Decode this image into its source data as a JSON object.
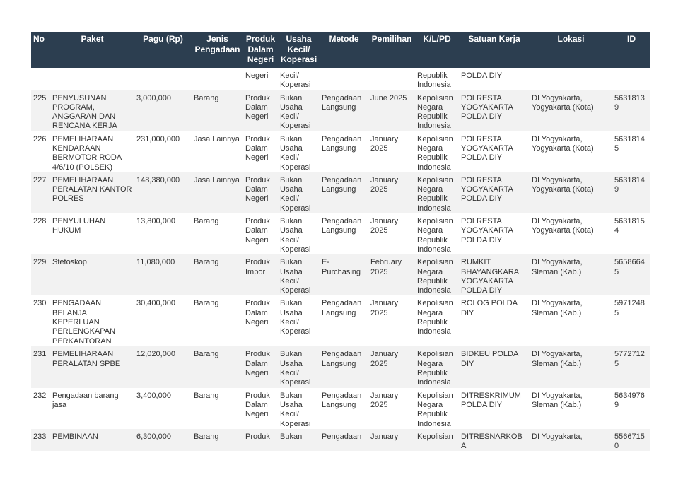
{
  "table": {
    "headers": [
      "No",
      "Paket",
      "Pagu (Rp)",
      "Jenis Pengadaan",
      "Produk Dalam Negeri",
      "Usaha Kecil/ Koperasi",
      "Metode",
      "Pemilihan",
      "K/L/PD",
      "Satuan Kerja",
      "Lokasi",
      "ID"
    ],
    "rows": [
      [
        "",
        "",
        "",
        "",
        "Negeri",
        "Kecil/ Koperasi",
        "",
        "",
        "Republik Indonesia",
        "POLDA DIY",
        "",
        ""
      ],
      [
        "225",
        "PENYUSUNAN PROGRAM, ANGGARAN DAN RENCANA KERJA",
        "3,000,000",
        "Barang",
        "Produk Dalam Negeri",
        "Bukan Usaha Kecil/ Koperasi",
        "Pengadaan Langsung",
        "June 2025",
        "Kepolisian Negara Republik Indonesia",
        "POLRESTA YOGYAKARTA POLDA DIY",
        "DI Yogyakarta, Yogyakarta (Kota)",
        "56318139"
      ],
      [
        "226",
        "PEMELIHARAAN KENDARAAN BERMOTOR RODA 4/6/10 (POLSEK)",
        "231,000,000",
        "Jasa Lainnya",
        "Produk Dalam Negeri",
        "Bukan Usaha Kecil/ Koperasi",
        "Pengadaan Langsung",
        "January 2025",
        "Kepolisian Negara Republik Indonesia",
        "POLRESTA YOGYAKARTA POLDA DIY",
        "DI Yogyakarta, Yogyakarta (Kota)",
        "56318145"
      ],
      [
        "227",
        "PEMELIHARAAN PERALATAN KANTOR POLRES",
        "148,380,000",
        "Jasa Lainnya",
        "Produk Dalam Negeri",
        "Bukan Usaha Kecil/ Koperasi",
        "Pengadaan Langsung",
        "January 2025",
        "Kepolisian Negara Republik Indonesia",
        "POLRESTA YOGYAKARTA POLDA DIY",
        "DI Yogyakarta, Yogyakarta (Kota)",
        "56318149"
      ],
      [
        "228",
        "PENYULUHAN HUKUM",
        "13,800,000",
        "Barang",
        "Produk Dalam Negeri",
        "Bukan Usaha Kecil/ Koperasi",
        "Pengadaan Langsung",
        "January 2025",
        "Kepolisian Negara Republik Indonesia",
        "POLRESTA YOGYAKARTA POLDA DIY",
        "DI Yogyakarta, Yogyakarta (Kota)",
        "56318154"
      ],
      [
        "229",
        "Stetoskop",
        "11,080,000",
        "Barang",
        "Produk Impor",
        "Bukan Usaha Kecil/ Koperasi",
        "E-Purchasing",
        "February 2025",
        "Kepolisian Negara Republik Indonesia",
        "RUMKIT BHAYANGKARA YOGYAKARTA POLDA DIY",
        "DI Yogyakarta, Sleman (Kab.)",
        "56586645"
      ],
      [
        "230",
        "PENGADAAN BELANJA KEPERLUAN PERLENGKAPAN PERKANTORAN",
        "30,400,000",
        "Barang",
        "Produk Dalam Negeri",
        "Bukan Usaha Kecil/ Koperasi",
        "Pengadaan Langsung",
        "January 2025",
        "Kepolisian Negara Republik Indonesia",
        "ROLOG POLDA DIY",
        "DI Yogyakarta, Sleman (Kab.)",
        "59712485"
      ],
      [
        "231",
        "PEMELIHARAAN PERALATAN SPBE",
        "12,020,000",
        "Barang",
        "Produk Dalam Negeri",
        "Bukan Usaha Kecil/ Koperasi",
        "Pengadaan Langsung",
        "January 2025",
        "Kepolisian Negara Republik Indonesia",
        "BIDKEU POLDA DIY",
        "DI Yogyakarta, Sleman (Kab.)",
        "57727125"
      ],
      [
        "232",
        "Pengadaan barang jasa",
        "3,400,000",
        "Barang",
        "Produk Dalam Negeri",
        "Bukan Usaha Kecil/ Koperasi",
        "Pengadaan Langsung",
        "January 2025",
        "Kepolisian Negara Republik Indonesia",
        "DITRESKRIMUM POLDA DIY",
        "DI Yogyakarta, Sleman (Kab.)",
        "56349769"
      ],
      [
        "233",
        "PEMBINAAN",
        "6,300,000",
        "Barang",
        "Produk",
        "Bukan",
        "Pengadaan",
        "January",
        "Kepolisian",
        "DITRESNARKOBA",
        "DI Yogyakarta,",
        "55667150"
      ]
    ]
  },
  "colors": {
    "header_bg": "#2c3e50",
    "row_alt": "#f2f2f2"
  }
}
